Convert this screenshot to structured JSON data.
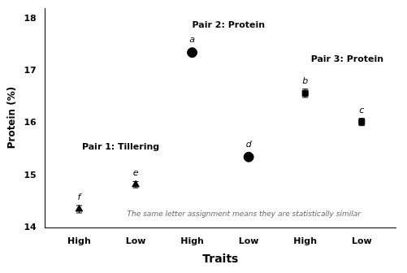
{
  "chart_data": {
    "type": "scatter",
    "xlabel": "Traits",
    "ylabel": "Protein (%)",
    "x": [
      1,
      2,
      3,
      4,
      5,
      6
    ],
    "xlim": [
      0.4,
      6.6
    ],
    "xticks": [
      {
        "value": 1,
        "label": "High"
      },
      {
        "value": 2,
        "label": "Low"
      },
      {
        "value": 3,
        "label": "High"
      },
      {
        "value": 4,
        "label": "Low"
      },
      {
        "value": 5,
        "label": "High"
      },
      {
        "value": 6,
        "label": "Low"
      }
    ],
    "ylim": [
      14.0,
      18.2
    ],
    "yticks": [
      14,
      15,
      16,
      17,
      18
    ],
    "grid": false,
    "series": [
      {
        "marker": "triangle",
        "color": "#000000",
        "values": [
          14.35,
          14.82,
          null,
          null,
          null,
          null
        ],
        "errors": [
          0.07,
          0.06,
          null,
          null,
          null,
          null
        ],
        "letters": [
          "f",
          "e",
          null,
          null,
          null,
          null
        ]
      },
      {
        "marker": "circle",
        "color": "#000000",
        "values": [
          null,
          null,
          17.35,
          15.35,
          null,
          null
        ],
        "errors": [
          null,
          null,
          0.05,
          0.06,
          null,
          null
        ],
        "letters": [
          null,
          null,
          "a",
          "d",
          null,
          null
        ]
      },
      {
        "marker": "square",
        "color": "#000000",
        "values": [
          null,
          null,
          null,
          null,
          16.57,
          16.02
        ],
        "errors": [
          null,
          null,
          null,
          null,
          0.08,
          0.07
        ],
        "letters": [
          null,
          null,
          null,
          null,
          "b",
          "c"
        ]
      }
    ],
    "annotations": [
      {
        "text": "Pair 1: Tillering",
        "x": 1.05,
        "y": 15.62
      },
      {
        "text": "Pair 2: Protein",
        "x": 3.0,
        "y": 17.95
      },
      {
        "text": "Pair 3: Protein",
        "x": 5.1,
        "y": 17.3
      }
    ],
    "caption": {
      "text": "The same letter assignment means they are statistically similar",
      "x": 1.85,
      "y": 14.18
    }
  }
}
